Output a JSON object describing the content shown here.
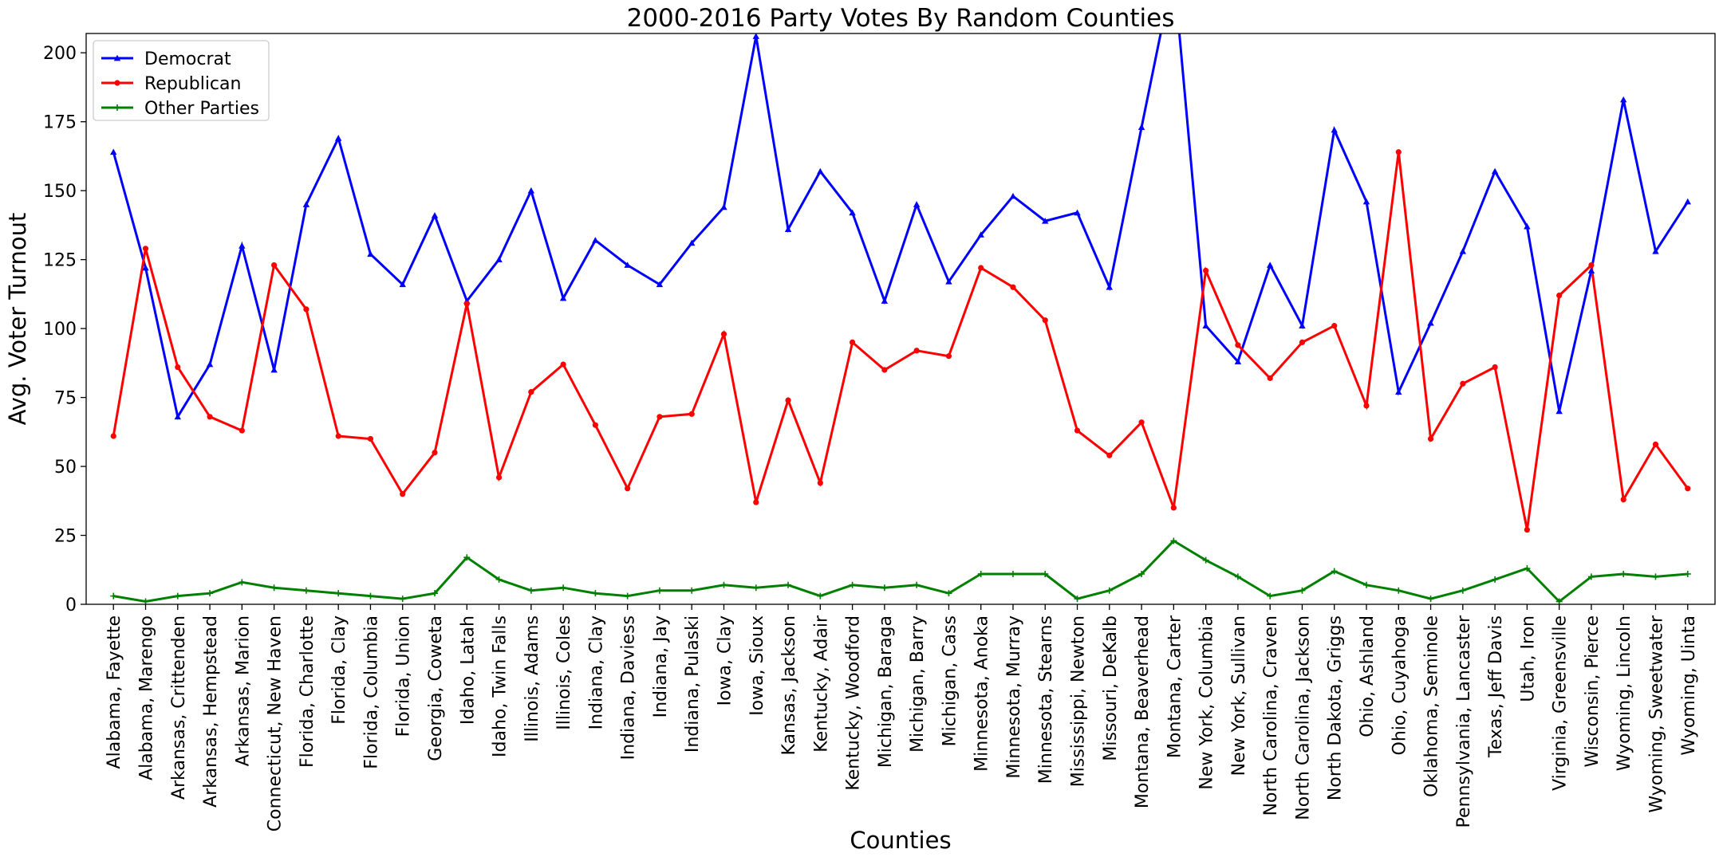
{
  "chart_data": {
    "type": "line",
    "title": "2000-2016 Party Votes By Random Counties",
    "xlabel": "Counties",
    "ylabel": "Avg. Voter Turnout",
    "ylim": [
      0,
      207
    ],
    "yticks": [
      0,
      25,
      50,
      75,
      100,
      125,
      150,
      175,
      200
    ],
    "grid": false,
    "legend_position": "top-left",
    "categories": [
      "Alabama, Fayette",
      "Alabama, Marengo",
      "Arkansas, Crittenden",
      "Arkansas, Hempstead",
      "Arkansas, Marion",
      "Connecticut, New Haven",
      "Florida, Charlotte",
      "Florida, Clay",
      "Florida, Columbia",
      "Florida, Union",
      "Georgia, Coweta",
      "Idaho, Latah",
      "Idaho, Twin Falls",
      "Illinois, Adams",
      "Illinois, Coles",
      "Indiana, Clay",
      "Indiana, Daviess",
      "Indiana, Jay",
      "Indiana, Pulaski",
      "Iowa, Clay",
      "Iowa, Sioux",
      "Kansas, Jackson",
      "Kentucky, Adair",
      "Kentucky, Woodford",
      "Michigan, Baraga",
      "Michigan, Barry",
      "Michigan, Cass",
      "Minnesota, Anoka",
      "Minnesota, Murray",
      "Minnesota, Stearns",
      "Mississippi, Newton",
      "Missouri, DeKalb",
      "Montana, Beaverhead",
      "Montana, Carter",
      "New York, Columbia",
      "New York, Sullivan",
      "North Carolina, Craven",
      "North Carolina, Jackson",
      "North Dakota, Griggs",
      "Ohio, Ashland",
      "Ohio, Cuyahoga",
      "Oklahoma, Seminole",
      "Pennsylvania, Lancaster",
      "Texas, Jeff Davis",
      "Utah, Iron",
      "Virginia, Greensville",
      "Wisconsin, Pierce",
      "Wyoming, Lincoln",
      "Wyoming, Sweetwater",
      "Wyoming, Uinta"
    ],
    "series": [
      {
        "name": "Democrat",
        "color": "#0000ff",
        "marker": "triangle",
        "values": [
          164,
          122,
          68,
          87,
          130,
          85,
          145,
          169,
          127,
          116,
          141,
          110,
          125,
          150,
          111,
          132,
          123,
          116,
          131,
          144,
          206,
          136,
          157,
          142,
          110,
          145,
          117,
          134,
          148,
          139,
          142,
          115,
          173,
          230,
          101,
          88,
          123,
          101,
          172,
          146,
          77,
          102,
          128,
          157,
          137,
          70,
          121,
          183,
          128,
          146
        ]
      },
      {
        "name": "Republican",
        "color": "#ff0000",
        "marker": "circle",
        "values": [
          61,
          129,
          86,
          68,
          63,
          123,
          107,
          61,
          60,
          40,
          55,
          109,
          46,
          77,
          87,
          65,
          42,
          68,
          69,
          98,
          37,
          74,
          44,
          95,
          85,
          92,
          90,
          122,
          115,
          103,
          63,
          54,
          66,
          35,
          121,
          94,
          82,
          95,
          101,
          72,
          164,
          60,
          80,
          86,
          27,
          112,
          123,
          38,
          58,
          42
        ]
      },
      {
        "name": "Other Parties",
        "color": "#008000",
        "marker": "plus",
        "values": [
          3,
          1,
          3,
          4,
          8,
          6,
          5,
          4,
          3,
          2,
          4,
          17,
          9,
          5,
          6,
          4,
          3,
          5,
          5,
          7,
          6,
          7,
          3,
          7,
          6,
          7,
          4,
          11,
          11,
          11,
          2,
          5,
          11,
          23,
          16,
          10,
          3,
          5,
          12,
          7,
          5,
          2,
          5,
          9,
          13,
          1,
          10,
          11,
          10,
          11
        ]
      }
    ]
  }
}
